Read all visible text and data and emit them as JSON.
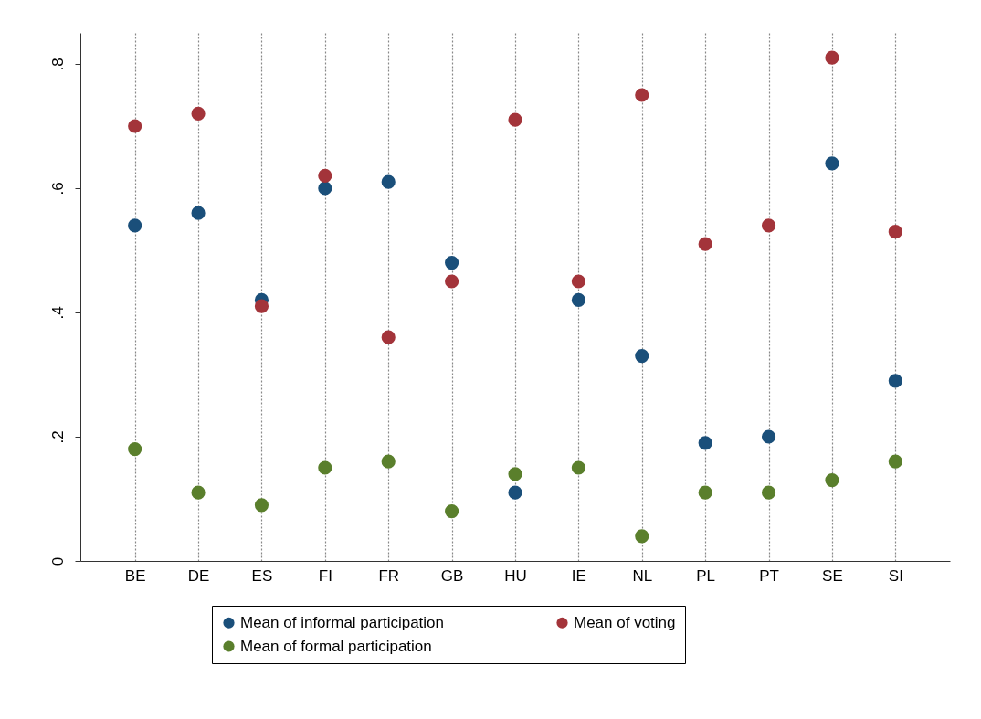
{
  "chart_data": {
    "type": "scatter",
    "categories": [
      "BE",
      "DE",
      "ES",
      "FI",
      "FR",
      "GB",
      "HU",
      "IE",
      "NL",
      "PL",
      "PT",
      "SE",
      "SI"
    ],
    "series": [
      {
        "name": "Mean of informal participation",
        "color": "#1a4f7a",
        "values": [
          0.54,
          0.56,
          0.42,
          0.6,
          0.61,
          0.48,
          0.11,
          0.42,
          0.33,
          0.19,
          0.2,
          0.64,
          0.29
        ]
      },
      {
        "name": "Mean of voting",
        "color": "#a3343a",
        "values": [
          0.7,
          0.72,
          0.41,
          0.62,
          0.36,
          0.45,
          0.71,
          0.45,
          0.75,
          0.51,
          0.54,
          0.81,
          0.53
        ]
      },
      {
        "name": "Mean of formal participation",
        "color": "#5a7f2c",
        "values": [
          0.18,
          0.11,
          0.09,
          0.15,
          0.16,
          0.08,
          0.14,
          0.15,
          0.04,
          0.11,
          0.11,
          0.13,
          0.16
        ]
      }
    ],
    "ylim": [
      0,
      0.85
    ],
    "yticks": [
      0,
      {
        "value": 0.2,
        "label": ".2"
      },
      {
        "value": 0.4,
        "label": ".4"
      },
      {
        "value": 0.6,
        "label": ".6"
      },
      {
        "value": 0.8,
        "label": ".8"
      }
    ],
    "grid": "x",
    "legend": "bottom",
    "marker": "circle"
  }
}
